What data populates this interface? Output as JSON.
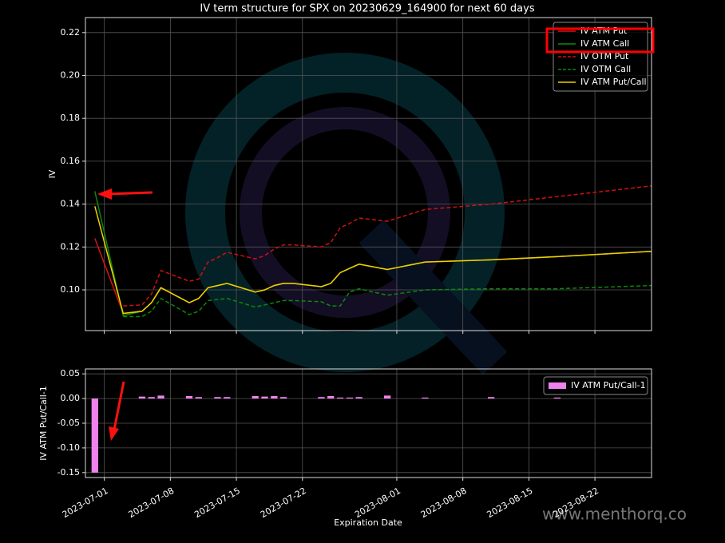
{
  "watermark": "www.menthorq.co",
  "chart_data": [
    {
      "type": "line",
      "title": "IV term structure for SPX on 20230629_164900 for next 60 days",
      "ylabel": "IV",
      "x": [
        "2023-06-30",
        "2023-07-03",
        "2023-07-05",
        "2023-07-06",
        "2023-07-07",
        "2023-07-10",
        "2023-07-11",
        "2023-07-12",
        "2023-07-13",
        "2023-07-14",
        "2023-07-17",
        "2023-07-18",
        "2023-07-19",
        "2023-07-20",
        "2023-07-21",
        "2023-07-24",
        "2023-07-25",
        "2023-07-26",
        "2023-07-27",
        "2023-07-28",
        "2023-07-31",
        "2023-08-04",
        "2023-08-11",
        "2023-08-18",
        "2023-08-28"
      ],
      "series": [
        {
          "name": "IV ATM Put",
          "color": "#e01010",
          "dash": false,
          "values": [
            0.124,
            0.089,
            0.09,
            0.094,
            0.101,
            0.094,
            0.096,
            0.101,
            0.102,
            0.103,
            0.099,
            0.1,
            0.102,
            0.103,
            0.103,
            0.1015,
            0.103,
            0.108,
            0.11,
            0.112,
            0.1095,
            0.113,
            0.114,
            0.1155,
            0.118
          ]
        },
        {
          "name": "IV ATM Call",
          "color": "#0a8a0a",
          "dash": false,
          "values": [
            0.146,
            0.088,
            0.09,
            0.094,
            0.101,
            0.094,
            0.096,
            0.101,
            0.102,
            0.103,
            0.099,
            0.1,
            0.102,
            0.103,
            0.103,
            0.1015,
            0.103,
            0.108,
            0.11,
            0.112,
            0.1095,
            0.113,
            0.114,
            0.1155,
            0.118
          ]
        },
        {
          "name": "IV OTM Put",
          "color": "#d01010",
          "dash": true,
          "values": [
            null,
            0.0925,
            0.093,
            0.098,
            0.109,
            0.104,
            0.105,
            0.113,
            0.115,
            0.1175,
            0.1145,
            0.116,
            0.119,
            0.121,
            0.121,
            0.12,
            0.122,
            0.129,
            0.131,
            0.1335,
            0.132,
            0.1375,
            0.14,
            0.1435,
            0.1485
          ]
        },
        {
          "name": "IV OTM Call",
          "color": "#0a8a0a",
          "dash": true,
          "values": [
            null,
            0.0875,
            0.0875,
            0.09,
            0.096,
            0.0885,
            0.09,
            0.095,
            0.0955,
            0.096,
            0.092,
            0.093,
            0.094,
            0.095,
            0.095,
            0.0945,
            0.0925,
            0.0925,
            0.099,
            0.1005,
            0.0975,
            0.1,
            0.1005,
            0.1005,
            0.102
          ]
        },
        {
          "name": "IV ATM Put/Call",
          "color": "#f0d000",
          "dash": false,
          "values": [
            0.139,
            0.089,
            0.09,
            0.094,
            0.101,
            0.094,
            0.096,
            0.101,
            0.102,
            0.103,
            0.099,
            0.1,
            0.102,
            0.103,
            0.103,
            0.1015,
            0.103,
            0.108,
            0.11,
            0.112,
            0.1095,
            0.113,
            0.114,
            0.1155,
            0.118
          ]
        }
      ],
      "ylim": [
        0.081,
        0.227
      ],
      "yticks": [
        {
          "value": 0.1,
          "label": "0.10"
        },
        0.12,
        0.14,
        0.16,
        0.18,
        {
          "value": 0.2,
          "label": "0.20"
        },
        0.22
      ],
      "grid": true,
      "legend": "upper right"
    },
    {
      "type": "bar",
      "xlabel": "Expiration Date",
      "ylabel": "IV ATM Put/Call-1",
      "x": [
        "2023-06-30",
        "2023-07-03",
        "2023-07-05",
        "2023-07-06",
        "2023-07-07",
        "2023-07-10",
        "2023-07-11",
        "2023-07-12",
        "2023-07-13",
        "2023-07-14",
        "2023-07-17",
        "2023-07-18",
        "2023-07-19",
        "2023-07-20",
        "2023-07-21",
        "2023-07-24",
        "2023-07-25",
        "2023-07-26",
        "2023-07-27",
        "2023-07-28",
        "2023-07-31",
        "2023-08-04",
        "2023-08-11",
        "2023-08-18",
        "2023-08-28"
      ],
      "series": [
        {
          "name": "IV ATM Put/Call-1",
          "color": "#ee82ee",
          "values": [
            -0.15,
            0,
            0.004,
            0.003,
            0.006,
            0.005,
            0.003,
            0,
            0.003,
            0.003,
            0.005,
            0.004,
            0.005,
            0.003,
            0,
            0.003,
            0.005,
            0.002,
            0.002,
            0.003,
            0.006,
            0.002,
            0.003,
            0.002,
            0
          ]
        }
      ],
      "xlim": [
        "2023-06-29",
        "2023-08-28"
      ],
      "xticks": [
        "2023-07-01",
        "2023-07-08",
        "2023-07-15",
        "2023-07-22",
        "2023-08-01",
        "2023-08-08",
        "2023-08-15",
        "2023-08-22"
      ],
      "ylim": [
        -0.16,
        0.06
      ],
      "yticks": [
        0.05,
        {
          "value": 0,
          "label": "0.00"
        },
        -0.05,
        {
          "value": -0.1,
          "label": "-0.10"
        },
        -0.15
      ],
      "grid": true,
      "legend": "upper right"
    }
  ]
}
